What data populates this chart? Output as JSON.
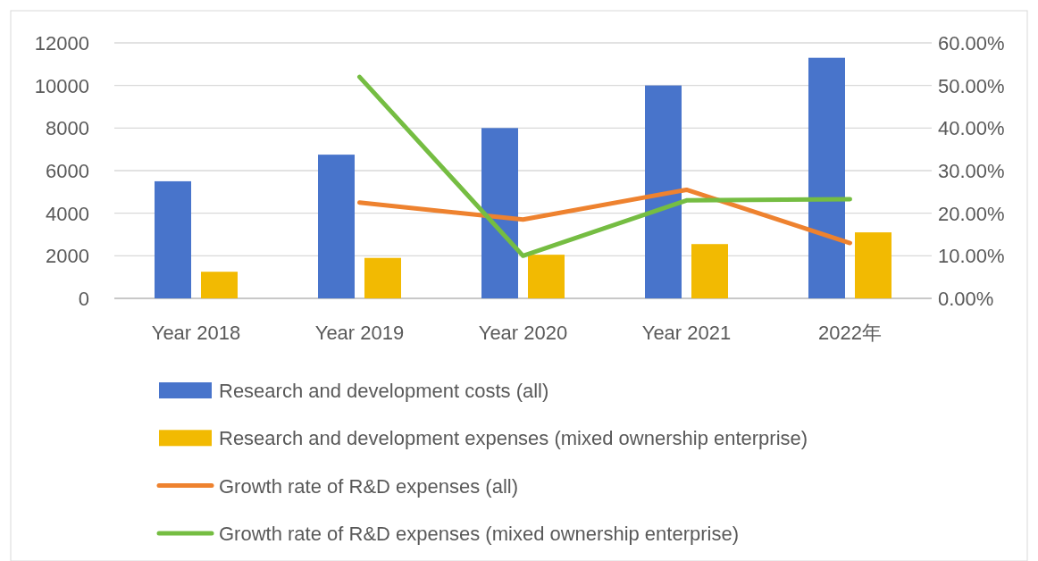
{
  "chart_data": {
    "type": "bar",
    "categories": [
      "Year 2018",
      "Year 2019",
      "Year 2020",
      "Year 2021",
      "2022年"
    ],
    "series": [
      {
        "name": "Research and development costs (all)",
        "color": "#4874cb",
        "values": [
          5500,
          6750,
          8000,
          10000,
          11300
        ]
      },
      {
        "name": "Research and development expenses (mixed ownership enterprise)",
        "color": "#f2ba02",
        "values": [
          1250,
          1900,
          2050,
          2550,
          3100
        ]
      },
      {
        "name": "Growth rate of R&D expenses (all)",
        "type": "line",
        "axis": "y2",
        "color": "#ee822f",
        "values": [
          null,
          22.5,
          18.5,
          25.5,
          13
        ]
      },
      {
        "name": "Growth rate of R&D expenses (mixed ownership enterprise)",
        "type": "line",
        "axis": "y2",
        "color": "#75bd42",
        "values": [
          null,
          52,
          10,
          23,
          23.3
        ]
      }
    ],
    "ylim": [
      0,
      12000
    ],
    "yticks": [
      0,
      2000,
      4000,
      6000,
      8000,
      10000,
      12000
    ],
    "y2lim": [
      0,
      60
    ],
    "y2ticks": [
      {
        "value": 0,
        "label": "0.00%"
      },
      {
        "value": 10,
        "label": "10.00%"
      },
      {
        "value": 20,
        "label": "20.00%"
      },
      {
        "value": 30,
        "label": "30.00%"
      },
      {
        "value": 40,
        "label": "40.00%"
      },
      {
        "value": 50,
        "label": "50.00%"
      },
      {
        "value": 60,
        "label": "60.00%"
      }
    ],
    "grid": "y",
    "legend": "bottom",
    "line_style": "solid",
    "marker": "none"
  }
}
